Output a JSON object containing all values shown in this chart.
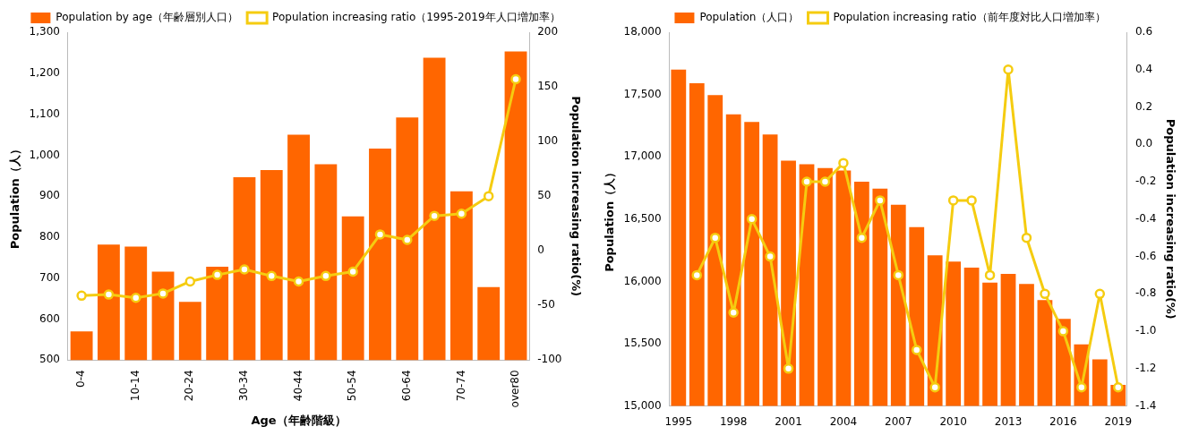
{
  "chart_data": [
    {
      "type": "bar",
      "xlabel": "Age（年齢階級）",
      "ylabel": "Population（人）",
      "y2label": "Population increasing ratio(%)",
      "categories": [
        "0-4",
        null,
        "10-14",
        null,
        "20-24",
        null,
        "30-34",
        null,
        "40-44",
        null,
        "50-54",
        null,
        "60-64",
        null,
        "70-74",
        null,
        "over80"
      ],
      "series": [
        {
          "name": "Population by age（年齢層別人口）",
          "color": "#ff6600",
          "values": [
            570,
            782,
            777,
            716,
            642,
            728,
            946,
            964,
            1050,
            978,
            851,
            1016,
            1092,
            1238,
            912,
            678,
            1253
          ]
        },
        {
          "name": "Population increasing ratio（1995-2019年人口増加率）",
          "type": "line",
          "axis": "y2",
          "color": "#f5cc10",
          "values": [
            -41,
            -40,
            -43,
            -39,
            -28,
            -22,
            -17,
            -23,
            -28,
            -23,
            -19,
            15,
            10,
            32,
            34,
            50,
            157
          ]
        }
      ],
      "ylim": [
        500,
        1300
      ],
      "yticks": [
        500,
        600,
        700,
        800,
        900,
        {
          "value": 1000,
          "label": "1,000"
        },
        {
          "value": 1100,
          "label": "1,100"
        },
        {
          "value": 1200,
          "label": "1,200"
        },
        {
          "value": 1300,
          "label": "1,300"
        }
      ],
      "y2lim": [
        -100,
        200
      ],
      "y2ticks": [
        -100,
        -50,
        0,
        50,
        100,
        150,
        200
      ],
      "legend": "top",
      "marker": "circle"
    },
    {
      "type": "bar",
      "ylabel": "Population（人）",
      "y2label": "Population increasing ratio(%)",
      "categories": [
        "1995",
        null,
        null,
        "1998",
        null,
        null,
        "2001",
        null,
        null,
        "2004",
        null,
        null,
        "2007",
        null,
        null,
        "2010",
        null,
        null,
        "2013",
        null,
        null,
        "2016",
        null,
        null,
        "2019"
      ],
      "series": [
        {
          "name": "Population（人口）",
          "color": "#ff6600",
          "values": [
            17700,
            17590,
            17495,
            17340,
            17280,
            17180,
            16970,
            16940,
            16910,
            16890,
            16800,
            16745,
            16615,
            16435,
            16210,
            16160,
            16110,
            15990,
            16060,
            15980,
            15850,
            15700,
            15495,
            15375,
            15170
          ]
        },
        {
          "name": "Population increasing ratio（前年度対比人口増加率）",
          "type": "line",
          "axis": "y2",
          "color": "#f5cc10",
          "values": [
            null,
            -0.7,
            -0.5,
            -0.9,
            -0.4,
            -0.6,
            -1.2,
            -0.2,
            -0.2,
            -0.1,
            -0.5,
            -0.3,
            -0.7,
            -1.1,
            -1.3,
            -0.3,
            -0.3,
            -0.7,
            0.4,
            -0.5,
            -0.8,
            -1.0,
            -1.3,
            -0.8,
            -1.3
          ]
        }
      ],
      "ylim": [
        15000,
        18000
      ],
      "yticks": [
        {
          "value": 15000,
          "label": "15,000"
        },
        {
          "value": 15500,
          "label": "15,500"
        },
        {
          "value": 16000,
          "label": "16,000"
        },
        {
          "value": 16500,
          "label": "16,500"
        },
        {
          "value": 17000,
          "label": "17,000"
        },
        {
          "value": 17500,
          "label": "17,500"
        },
        {
          "value": 18000,
          "label": "18,000"
        }
      ],
      "y2lim": [
        -1.4,
        0.6
      ],
      "y2ticks": [
        -1.4,
        -1.2,
        {
          "value": -1.0,
          "label": "-1.0"
        },
        -0.8,
        -0.6,
        -0.4,
        -0.2,
        {
          "value": 0,
          "label": "0.0"
        },
        0.2,
        0.4,
        0.6
      ],
      "legend": "top",
      "marker": "circle"
    }
  ]
}
